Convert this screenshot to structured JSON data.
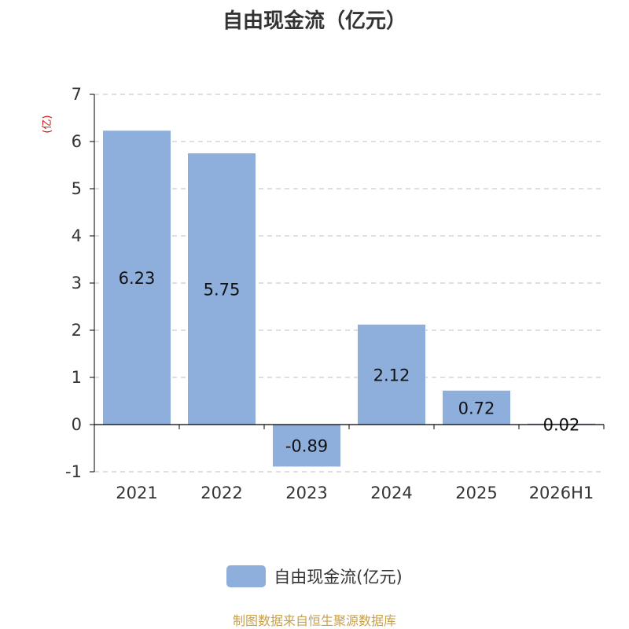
{
  "title": "自由现金流（亿元）",
  "source_note": "制图数据来自恒生聚源数据库",
  "colors": {
    "bar": "#8eaedb",
    "axis": "#000000",
    "grid": "#cccccc",
    "unit": "#cc0000",
    "source": "#c9a04b"
  },
  "chart_data": {
    "type": "bar",
    "title": "自由现金流（亿元）",
    "categories": [
      "2021",
      "2022",
      "2023",
      "2024",
      "2025",
      "2026H1"
    ],
    "series": [
      {
        "name": "自由现金流(亿元)",
        "values": [
          6.23,
          5.75,
          -0.89,
          2.12,
          0.72,
          0.02
        ]
      }
    ],
    "data_labels": [
      "6.23",
      "5.75",
      "-0.89",
      "2.12",
      "0.72",
      "0.02"
    ],
    "ylim": [
      -1,
      7
    ],
    "yticks": [
      -1,
      0,
      1,
      2,
      3,
      4,
      5,
      6,
      7
    ],
    "y_unit_label": "(亿)",
    "grid": true,
    "legend_position": "bottom"
  }
}
